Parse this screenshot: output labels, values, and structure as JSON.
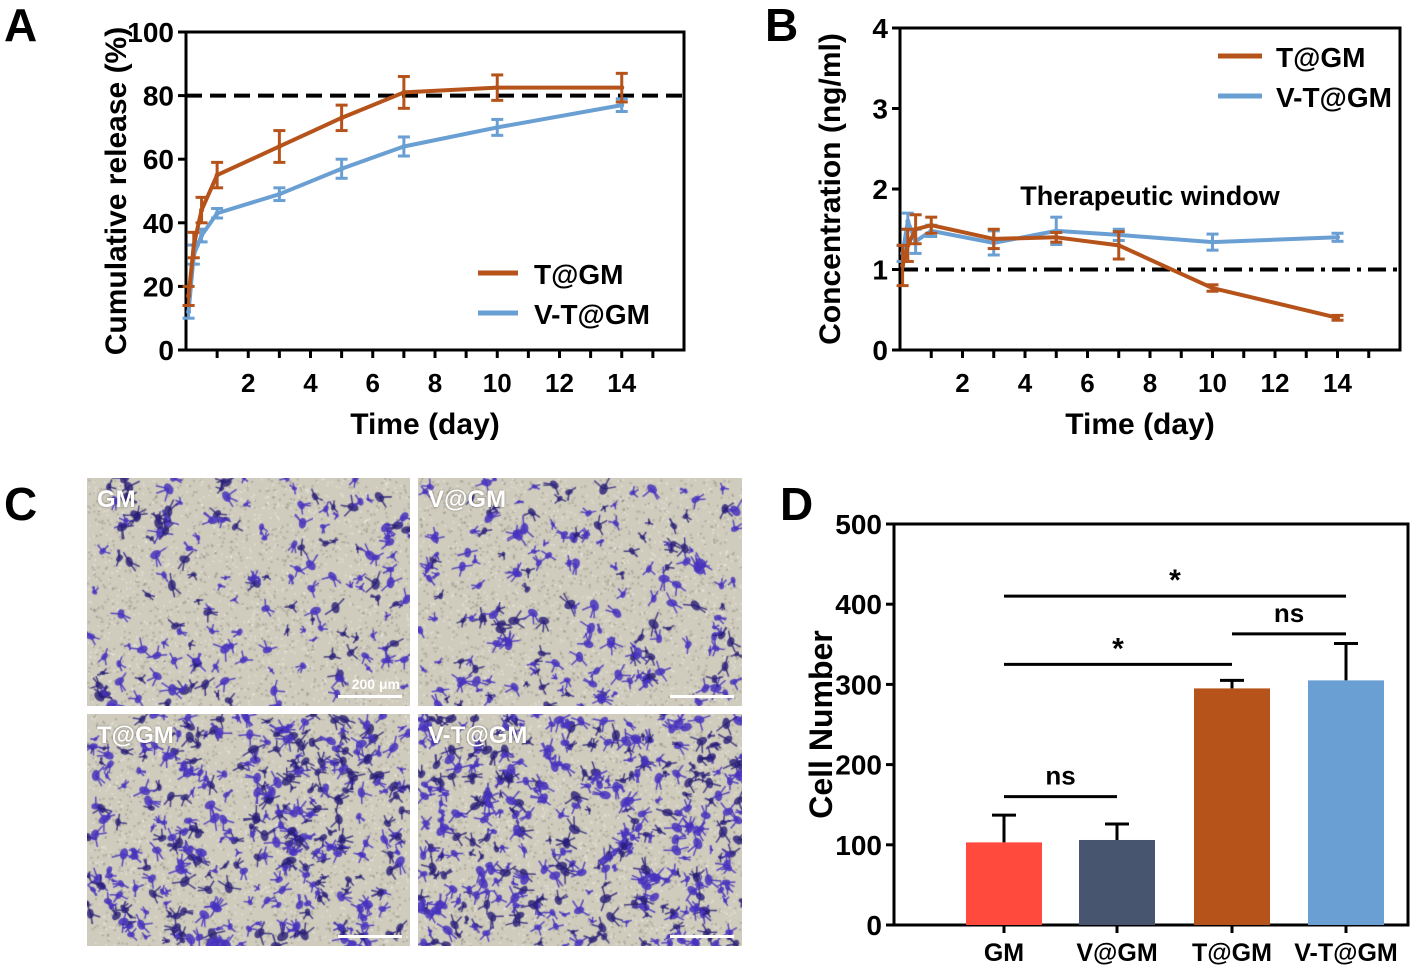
{
  "panels": {
    "A": "A",
    "B": "B",
    "C": "C",
    "D": "D"
  },
  "colors": {
    "T@GM": "#b5531a",
    "V-T@GM": "#6a9fd3",
    "GM": "#ff4a3d",
    "V@GM": "#47566e"
  },
  "chart_data": [
    {
      "id": "A",
      "type": "line",
      "title": "",
      "xlabel": "Time (day)",
      "ylabel": "Cumulative release (%)",
      "xlim": [
        0,
        16
      ],
      "ylim": [
        0,
        100
      ],
      "xticks": [
        2,
        4,
        6,
        8,
        10,
        12,
        14
      ],
      "yticks": [
        0,
        20,
        40,
        60,
        80,
        100
      ],
      "legend": "bottom-right",
      "reference_line": {
        "y": 80,
        "style": "dashed"
      },
      "x": [
        0.083,
        0.25,
        0.5,
        1,
        3,
        5,
        7,
        10,
        14
      ],
      "series": [
        {
          "name": "T@GM",
          "values": [
            17,
            33,
            44,
            55,
            64,
            73,
            81,
            82.5,
            82.5
          ],
          "errors": [
            3,
            4,
            4,
            4,
            5,
            4,
            5,
            4,
            4.5
          ]
        },
        {
          "name": "V-T@GM",
          "values": [
            12,
            30,
            36,
            43,
            49,
            57,
            64,
            70,
            77
          ],
          "errors": [
            2,
            3,
            2,
            1.5,
            2,
            3,
            3,
            2.5,
            2
          ]
        }
      ]
    },
    {
      "id": "B",
      "type": "line",
      "title": "",
      "xlabel": "Time (day)",
      "ylabel": "Concentration (ng/ml)",
      "xlim": [
        0,
        16
      ],
      "ylim": [
        0,
        4
      ],
      "xticks": [
        2,
        4,
        6,
        8,
        10,
        12,
        14
      ],
      "yticks": [
        0,
        1,
        2,
        3,
        4
      ],
      "legend": "top-right",
      "reference_line": {
        "y": 1,
        "style": "dash-dot"
      },
      "annotation": "Therapeutic window",
      "x": [
        0.083,
        0.25,
        0.5,
        1,
        3,
        5,
        7,
        10,
        14
      ],
      "series": [
        {
          "name": "T@GM",
          "values": [
            1.05,
            1.3,
            1.5,
            1.55,
            1.38,
            1.4,
            1.3,
            0.77,
            0.4
          ],
          "errors": [
            0.25,
            0.2,
            0.18,
            0.1,
            0.12,
            0.06,
            0.17,
            0.04,
            0.03
          ]
        },
        {
          "name": "V-T@GM",
          "values": [
            1.2,
            1.6,
            1.35,
            1.48,
            1.33,
            1.48,
            1.43,
            1.34,
            1.4
          ],
          "errors": [
            0.1,
            0.1,
            0.15,
            0.07,
            0.15,
            0.17,
            0.07,
            0.1,
            0.05
          ]
        }
      ]
    },
    {
      "id": "D",
      "type": "bar",
      "title": "",
      "xlabel": "",
      "ylabel": "Cell Number",
      "ylim": [
        0,
        500
      ],
      "yticks": [
        0,
        100,
        200,
        300,
        400,
        500
      ],
      "categories": [
        "GM",
        "V@GM",
        "T@GM",
        "V-T@GM"
      ],
      "values": [
        103,
        106,
        295,
        305
      ],
      "errors": [
        34,
        20,
        10,
        46
      ],
      "significance": [
        {
          "from": "GM",
          "to": "V@GM",
          "label": "ns",
          "y": 160
        },
        {
          "from": "GM",
          "to": "T@GM",
          "label": "*",
          "y": 325
        },
        {
          "from": "T@GM",
          "to": "V-T@GM",
          "label": "ns",
          "y": 363
        },
        {
          "from": "GM",
          "to": "V-T@GM",
          "label": "*",
          "y": 410
        }
      ]
    }
  ],
  "micrographs": [
    {
      "label": "GM",
      "density": 0.45,
      "scale_bar": "200 μm"
    },
    {
      "label": "V@GM",
      "density": 0.5,
      "scale_bar": ""
    },
    {
      "label": "T@GM",
      "density": 0.95,
      "scale_bar": ""
    },
    {
      "label": "V-T@GM",
      "density": 1.0,
      "scale_bar": ""
    }
  ]
}
